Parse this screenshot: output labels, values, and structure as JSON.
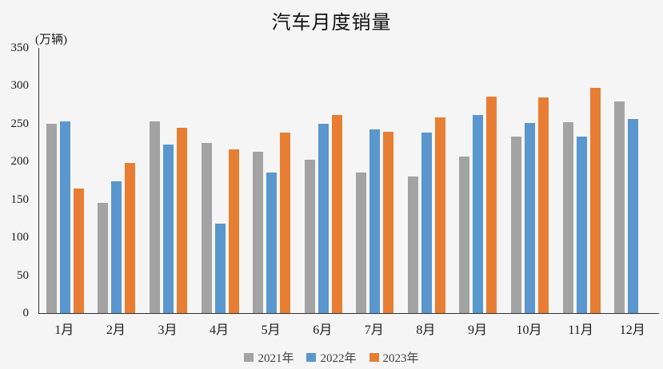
{
  "chart_data": {
    "type": "bar",
    "title": "汽车月度销量",
    "unit_label": "(万辆)",
    "xlabel": "",
    "ylabel": "万辆",
    "ylim": [
      0,
      350
    ],
    "ytick_step": 50,
    "grid": false,
    "legend_position": "bottom",
    "background_color": "#f5f5f6",
    "axis_color": "#333333",
    "categories": [
      "1月",
      "2月",
      "3月",
      "4月",
      "5月",
      "6月",
      "7月",
      "8月",
      "9月",
      "10月",
      "11月",
      "12月"
    ],
    "series": [
      {
        "name": "2021年",
        "color": "#a3a3a3",
        "values": [
          250,
          146,
          253,
          225,
          213,
          202,
          186,
          180,
          207,
          233,
          252,
          279
        ]
      },
      {
        "name": "2022年",
        "color": "#5997ce",
        "values": [
          253,
          174,
          223,
          118,
          186,
          250,
          242,
          238,
          261,
          251,
          233,
          256
        ]
      },
      {
        "name": "2023年",
        "color": "#e77e33",
        "values": [
          165,
          198,
          245,
          216,
          238,
          262,
          239,
          258,
          286,
          285,
          297,
          null
        ]
      }
    ]
  }
}
